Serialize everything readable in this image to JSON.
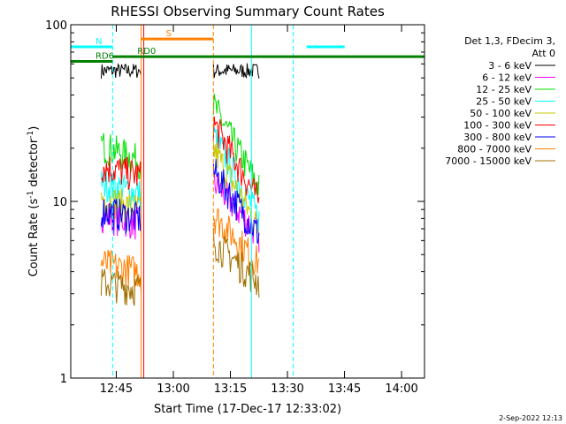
{
  "chart_data": {
    "type": "line",
    "title": "RHESSI Observing Summary Count Rates",
    "xlabel": "Start Time (17-Dec-17 12:33:02)",
    "ylabel_base": "Count Rate (s",
    "ylabel_sup": "-1",
    "ylabel_rest": " detector",
    "ylabel_sup2": "-1",
    "ylabel_end": ")",
    "yscale": "log",
    "ylim": [
      1,
      100
    ],
    "xlim_minutes": [
      0,
      93
    ],
    "x_ticks": [
      {
        "label": "12:45",
        "min": 11.97
      },
      {
        "label": "13:00",
        "min": 26.97
      },
      {
        "label": "13:15",
        "min": 41.97
      },
      {
        "label": "13:30",
        "min": 56.97
      },
      {
        "label": "13:45",
        "min": 71.97
      },
      {
        "label": "14:00",
        "min": 86.97
      }
    ],
    "y_ticks": [
      {
        "label": "1",
        "v": 1
      },
      {
        "label": "10",
        "v": 10
      },
      {
        "label": "100",
        "v": 100
      }
    ],
    "legend_header": [
      "Det 1,3, FDecim 3,",
      "Att 0"
    ],
    "series": [
      {
        "name": "3 - 6 keV",
        "color": "#000000",
        "seg1": [
          55,
          55
        ],
        "seg2": [
          55,
          55
        ]
      },
      {
        "name": "6 - 12 keV",
        "color": "#ff00ff",
        "seg1": [
          8.5,
          7.5
        ],
        "seg2": [
          13,
          6.5
        ]
      },
      {
        "name": "12 - 25 keV",
        "color": "#00e000",
        "seg1": [
          21,
          17
        ],
        "seg2": [
          35,
          12
        ]
      },
      {
        "name": "25 - 50 keV",
        "color": "#00ffff",
        "seg1": [
          13,
          11
        ],
        "seg2": [
          24,
          8
        ]
      },
      {
        "name": "50 - 100 keV",
        "color": "#c8c800",
        "seg1": [
          10.5,
          9
        ],
        "seg2": [
          20,
          7
        ]
      },
      {
        "name": "100 - 300 keV",
        "color": "#ff0000",
        "seg1": [
          16,
          14
        ],
        "seg2": [
          28,
          10
        ]
      },
      {
        "name": "300 - 800 keV",
        "color": "#0000ff",
        "seg1": [
          9,
          8
        ],
        "seg2": [
          15,
          6.5
        ]
      },
      {
        "name": "800 - 7000 keV",
        "color": "#ff8000",
        "seg1": [
          4.5,
          4
        ],
        "seg2": [
          8.5,
          4.5
        ]
      },
      {
        "name": "7000 - 15000 keV",
        "color": "#a07000",
        "seg1": [
          3.5,
          3.2
        ],
        "seg2": [
          6,
          3.5
        ]
      }
    ],
    "data_segments_minutes": [
      [
        8,
        18.5
      ],
      [
        37.5,
        49.5
      ]
    ],
    "flags": [
      {
        "label": "N",
        "color": "#00ffff",
        "y": 75,
        "ranges": [
          [
            0,
            11
          ],
          [
            62,
            72
          ]
        ]
      },
      {
        "label": "RD0",
        "color": "#008000",
        "y": 66,
        "ranges": [
          [
            11,
            93
          ]
        ]
      },
      {
        "label": "RD6",
        "color": "#008000",
        "y": 62,
        "ranges": [
          [
            0,
            11
          ]
        ]
      },
      {
        "label": "S",
        "color": "#ff8000",
        "y": 83,
        "ranges": [
          [
            18.5,
            37.5
          ]
        ]
      }
    ],
    "vlines": [
      {
        "min": 0.0,
        "color": "#00ffff",
        "dash": false
      },
      {
        "min": 11.0,
        "color": "#00ffff",
        "dash": true
      },
      {
        "min": 18.5,
        "color": "#ff8000",
        "dash": false
      },
      {
        "min": 19.2,
        "color": "#ff0000",
        "dash": false
      },
      {
        "min": 37.5,
        "color": "#ff8000",
        "dash": true
      },
      {
        "min": 47.5,
        "color": "#00ffff",
        "dash": false
      },
      {
        "min": 58.5,
        "color": "#00ffff",
        "dash": true
      }
    ],
    "footer_date": "2-Sep-2022 12:13"
  }
}
